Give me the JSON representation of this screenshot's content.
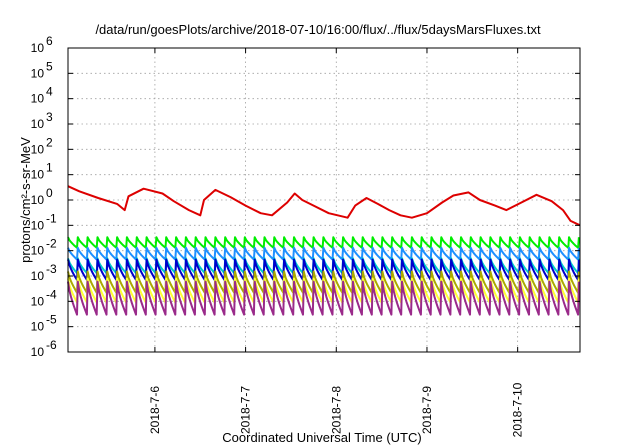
{
  "chart_data": {
    "type": "line",
    "title": "/data/run/goesPlots/archive/2018-07-10/16:00/flux/../flux/5daysMarsFluxes.txt",
    "xlabel": "Coordinated Universal Time (UTC)",
    "ylabel": "protons/cm²-s-sr-MeV",
    "y_scale": "log",
    "ylim": [
      1e-06,
      1000000.0
    ],
    "xlim": [
      "2018-07-05 01:00",
      "2018-07-10 16:30"
    ],
    "x_ticks": [
      "2018-7-6",
      "2018-7-7",
      "2018-7-8",
      "2018-7-9",
      "2018-7-10"
    ],
    "y_ticks": [
      {
        "exp": "-6",
        "value": 1e-06
      },
      {
        "exp": "-5",
        "value": 1e-05
      },
      {
        "exp": "-4",
        "value": 0.0001
      },
      {
        "exp": "-3",
        "value": 0.001
      },
      {
        "exp": "-2",
        "value": 0.01
      },
      {
        "exp": "-1",
        "value": 0.1
      },
      {
        "exp": "0",
        "value": 1
      },
      {
        "exp": "1",
        "value": 10
      },
      {
        "exp": "2",
        "value": 100
      },
      {
        "exp": "3",
        "value": 1000
      },
      {
        "exp": "4",
        "value": 10000
      },
      {
        "exp": "5",
        "value": 100000
      },
      {
        "exp": "6",
        "value": 1000000
      }
    ],
    "grid": true,
    "legend": "none",
    "series": [
      {
        "color": "#dd0000",
        "x": [
          "2018-07-05 01:00",
          "2018-07-05 04:00",
          "2018-07-05 09:00",
          "2018-07-05 14:00",
          "2018-07-05 16:00",
          "2018-07-05 17:00",
          "2018-07-05 21:00",
          "2018-07-06 02:00",
          "2018-07-06 05:00",
          "2018-07-06 09:00",
          "2018-07-06 12:00",
          "2018-07-06 13:00",
          "2018-07-06 16:00",
          "2018-07-06 20:00",
          "2018-07-07 00:00",
          "2018-07-07 04:00",
          "2018-07-07 07:00",
          "2018-07-07 11:00",
          "2018-07-07 13:00",
          "2018-07-07 15:00",
          "2018-07-07 18:00",
          "2018-07-07 22:00",
          "2018-07-08 03:00",
          "2018-07-08 05:00",
          "2018-07-08 08:00",
          "2018-07-08 11:00",
          "2018-07-08 14:00",
          "2018-07-08 17:00",
          "2018-07-08 20:00",
          "2018-07-09 00:00",
          "2018-07-09 04:00",
          "2018-07-09 07:00",
          "2018-07-09 11:00",
          "2018-07-09 14:00",
          "2018-07-09 18:00",
          "2018-07-09 21:00",
          "2018-07-10 01:00",
          "2018-07-10 05:00",
          "2018-07-10 09:00",
          "2018-07-10 12:00",
          "2018-07-10 14:00",
          "2018-07-10 16:30"
        ],
        "y": [
          3.5,
          2.2,
          1.2,
          0.7,
          0.4,
          1.4,
          2.8,
          1.8,
          0.9,
          0.4,
          0.25,
          1.0,
          2.5,
          1.3,
          0.6,
          0.3,
          0.25,
          0.8,
          1.8,
          1.0,
          0.6,
          0.3,
          0.2,
          0.6,
          1.2,
          0.7,
          0.4,
          0.25,
          0.2,
          0.3,
          0.8,
          1.5,
          2.0,
          1.0,
          0.6,
          0.4,
          0.8,
          1.6,
          0.9,
          0.4,
          0.15,
          0.1
        ]
      },
      {
        "color": "#00ee00",
        "base": 0.013,
        "peak": 0.034,
        "period_hours": 2.6
      },
      {
        "color": "#1e90ff",
        "base": 0.0045,
        "peak": 0.013,
        "period_hours": 2.6
      },
      {
        "color": "#00cccc",
        "base": 0.0013,
        "peak": 0.005,
        "period_hours": 2.6
      },
      {
        "color": "#0000cd",
        "base": 0.0007,
        "peak": 0.0045,
        "period_hours": 2.6
      },
      {
        "color": "#aaaa00",
        "base": 0.00022,
        "peak": 0.0015,
        "period_hours": 2.6
      },
      {
        "color": "#ffff33",
        "base": 9e-05,
        "peak": 0.0008,
        "period_hours": 2.6
      },
      {
        "color": "#9a2a8a",
        "base": 3e-05,
        "peak": 0.0006,
        "period_hours": 2.6
      }
    ]
  }
}
